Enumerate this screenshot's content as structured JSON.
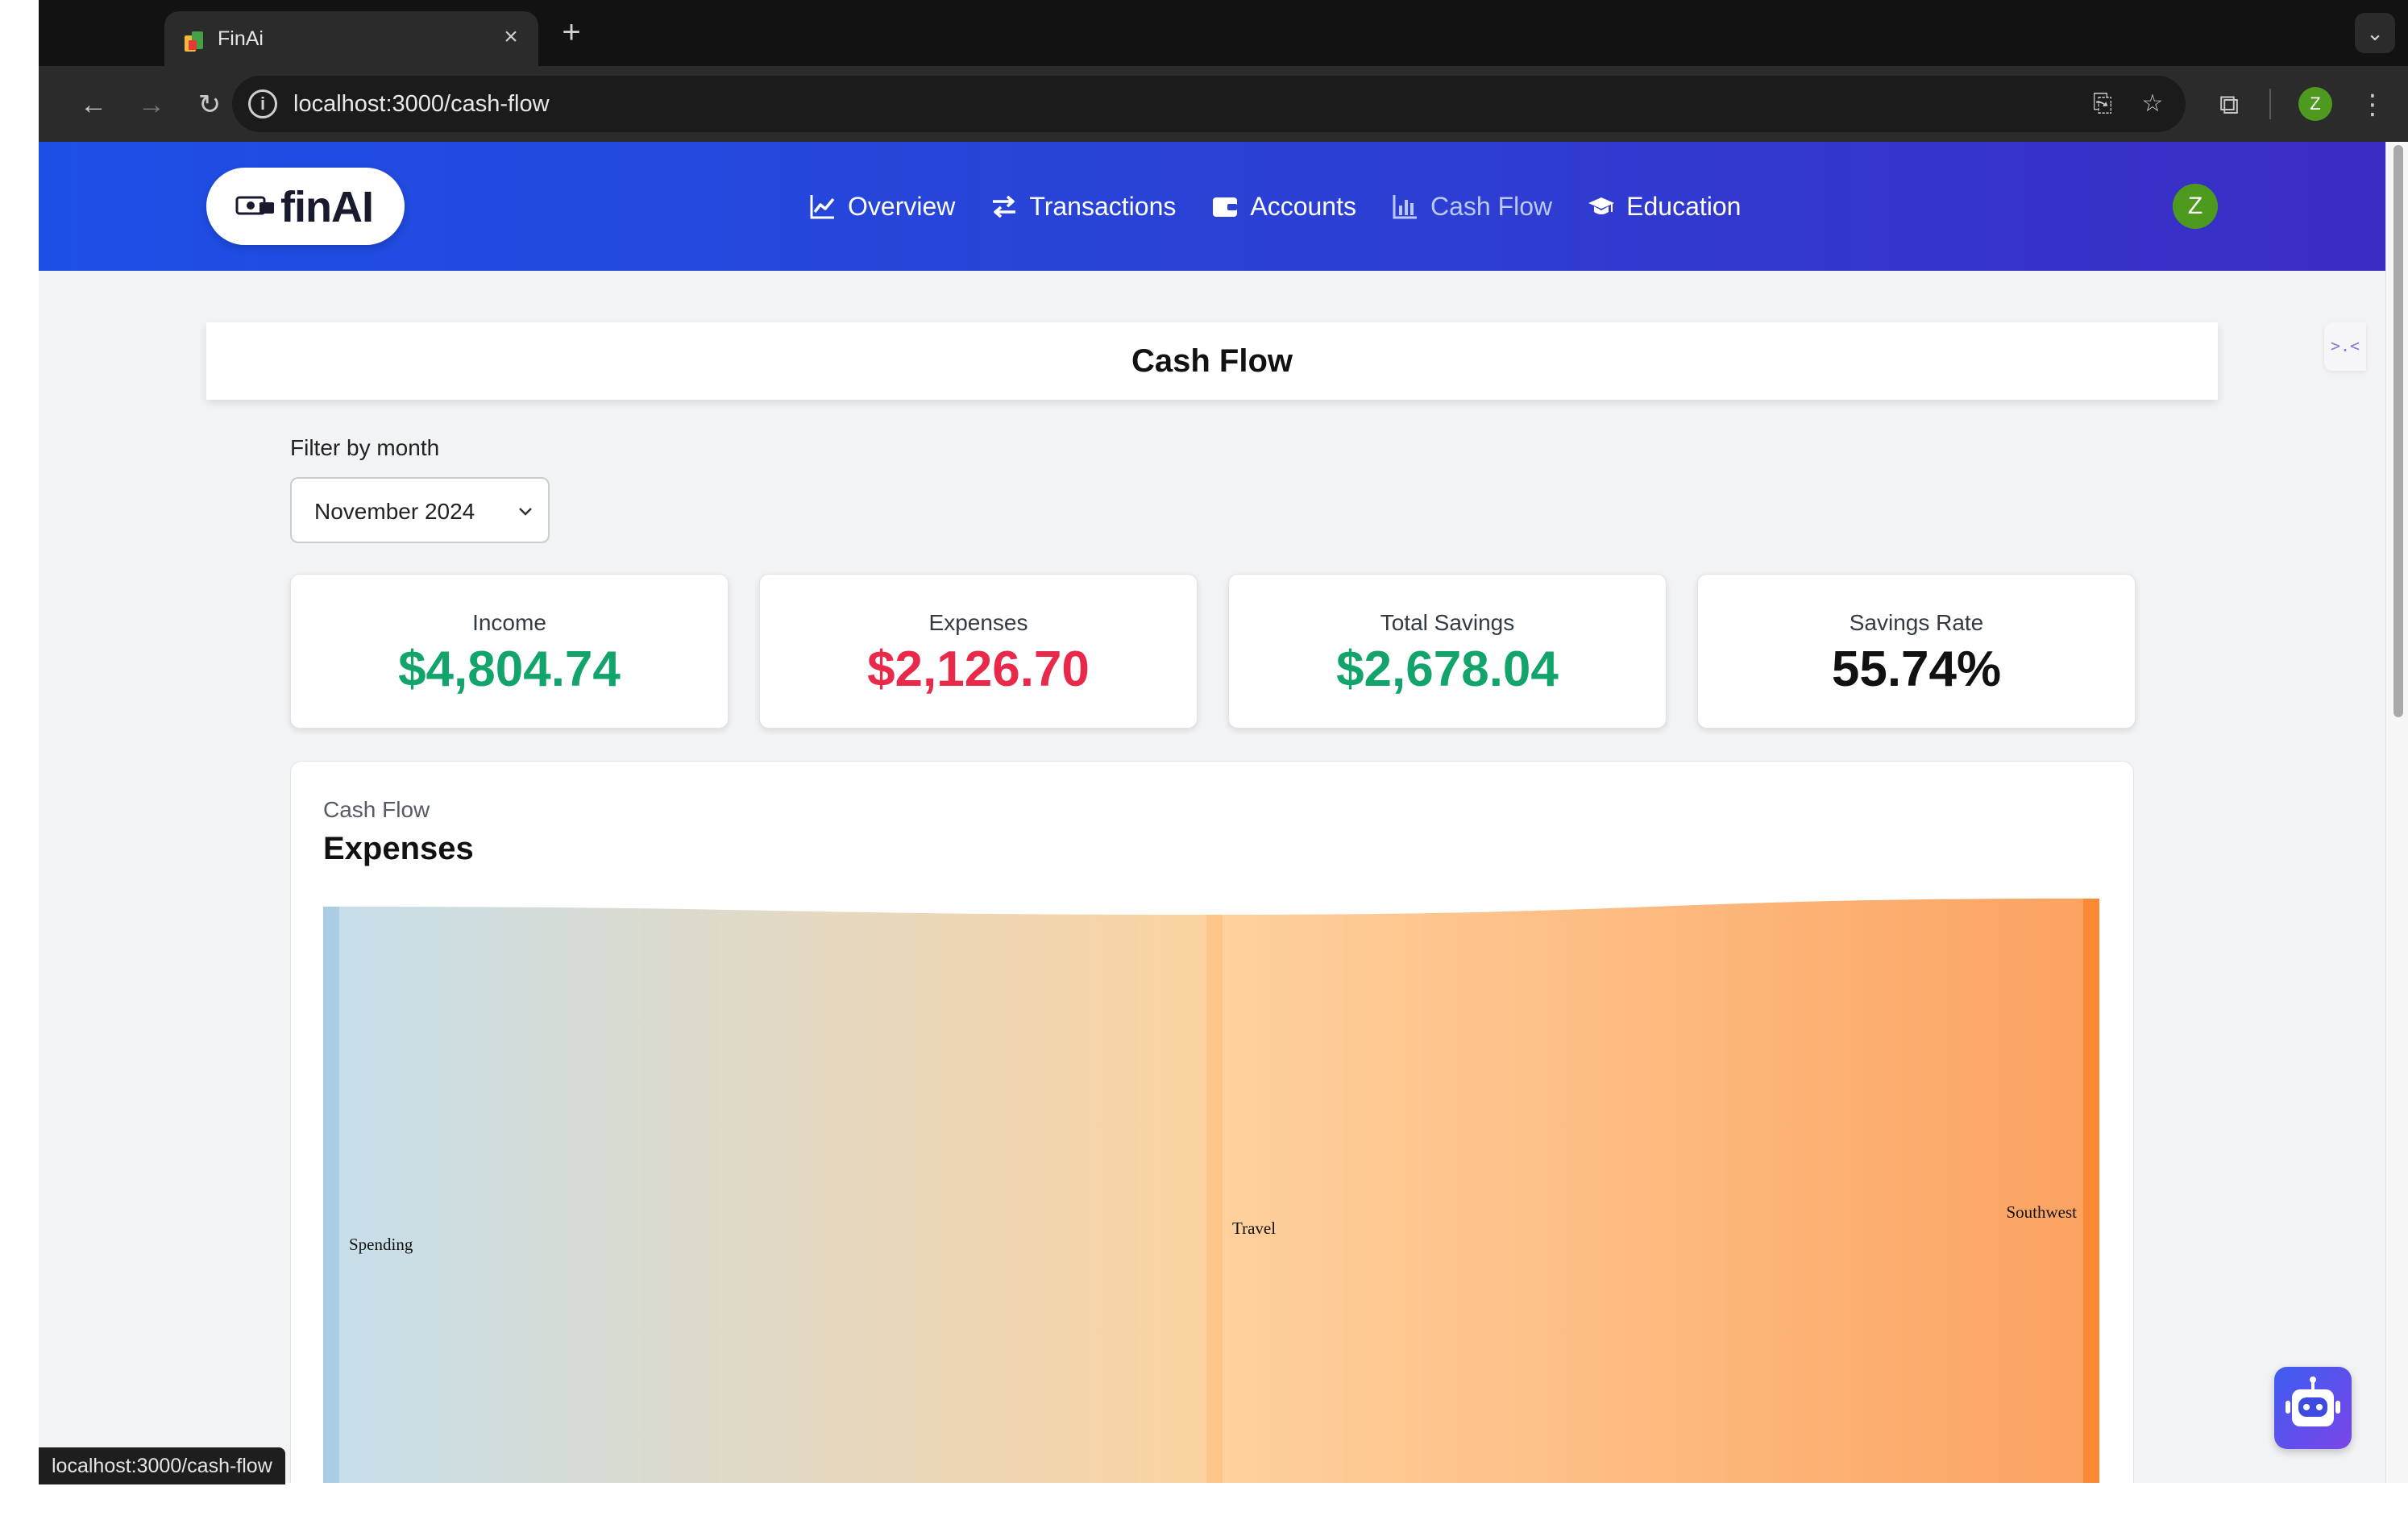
{
  "browser": {
    "tab_title": "FinAi",
    "tab_close": "×",
    "new_tab": "+",
    "url": "localhost:3000/cash-flow",
    "status_url": "localhost:3000/cash-flow",
    "profile_initial": "Z",
    "icons": [
      "back-arrow-icon",
      "forward-arrow-icon",
      "reload-icon",
      "info-icon",
      "install-app-icon",
      "star-icon",
      "extensions-icon",
      "more-vert-icon"
    ]
  },
  "navbar": {
    "logo_text": "finAI",
    "links": [
      {
        "label": "Overview",
        "icon": "chart-line-icon"
      },
      {
        "label": "Transactions",
        "icon": "arrows-exchange-icon"
      },
      {
        "label": "Accounts",
        "icon": "wallet-icon"
      },
      {
        "label": "Cash Flow",
        "icon": "bar-chart-icon"
      },
      {
        "label": "Education",
        "icon": "graduation-cap-icon"
      }
    ],
    "active": "Cash Flow",
    "user_initial": "Z"
  },
  "page": {
    "title": "Cash Flow",
    "side_widget": ">.<"
  },
  "filter": {
    "label": "Filter by month",
    "selected": "November 2024"
  },
  "stats": [
    {
      "label": "Income",
      "value": "$4,804.74",
      "color": "#12a46b"
    },
    {
      "label": "Expenses",
      "value": "$2,126.70",
      "color": "#e8294a"
    },
    {
      "label": "Total Savings",
      "value": "$2,678.04",
      "color": "#12a46b"
    },
    {
      "label": "Savings Rate",
      "value": "55.74%",
      "color": "#111111"
    }
  ],
  "chart": {
    "eyebrow": "Cash Flow",
    "heading": "Expenses"
  },
  "chart_data": {
    "type": "sankey",
    "nodes": [
      "Spending",
      "Travel",
      "Southwest"
    ],
    "links": [
      {
        "source": "Spending",
        "target": "Travel"
      },
      {
        "source": "Travel",
        "target": "Southwest"
      }
    ],
    "colors": {
      "Spending": "#a9cde2",
      "Travel": "#ffc58a",
      "Southwest": "#fb8a36"
    }
  }
}
